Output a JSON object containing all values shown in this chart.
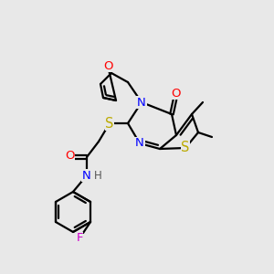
{
  "background_color": "#e8e8e8",
  "atom_colors": {
    "N": "#0000ff",
    "O": "#ff0000",
    "S_ring": "#bbaa00",
    "S_thio": "#bbaa00",
    "F": "#cc00cc",
    "H": "#555555"
  },
  "bond_color": "#000000",
  "line_width": 1.6,
  "fs": 9.5
}
